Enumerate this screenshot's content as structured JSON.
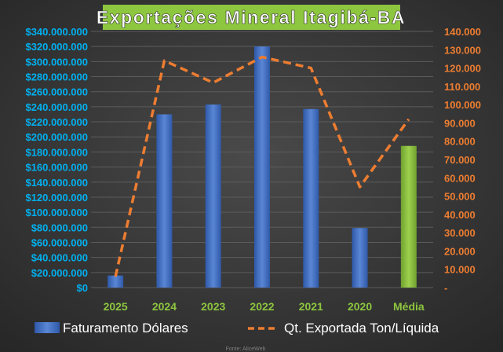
{
  "chart_data": {
    "type": "bar",
    "title": "Exportações Mineral Itagibá-BA",
    "categories": [
      "2025",
      "2024",
      "2023",
      "2022",
      "2021",
      "2020",
      "Média"
    ],
    "left_axis": {
      "ylim": [
        0,
        340000000
      ],
      "ticks": [
        "$0",
        "$20.000.000",
        "$40.000.000",
        "$60.000.000",
        "$80.000.000",
        "$100.000.000",
        "$120.000.000",
        "$140.000.000",
        "$160.000.000",
        "$180.000.000",
        "$200.000.000",
        "$220.000.000",
        "$240.000.000",
        "$260.000.000",
        "$280.000.000",
        "$300.000.000",
        "$320.000.000",
        "$340.000.000"
      ]
    },
    "right_axis": {
      "ylim": [
        0,
        140000
      ],
      "ticks": [
        "-",
        "10.000",
        "20.000",
        "30.000",
        "40.000",
        "50.000",
        "60.000",
        "70.000",
        "80.000",
        "90.000",
        "100.000",
        "110.000",
        "120.000",
        "130.000",
        "140.000"
      ]
    },
    "series": [
      {
        "name": "Faturamento Dólares",
        "kind": "bar",
        "axis": "left",
        "values": [
          16000000,
          230000000,
          243000000,
          320000000,
          237000000,
          79000000,
          188000000
        ],
        "color": "#4472c4",
        "highlight_color": "#8dc63f"
      },
      {
        "name": "Qt. Exportada Ton/Líquida",
        "kind": "line",
        "axis": "right",
        "style": "dashed",
        "values": [
          6000,
          124000,
          112000,
          126000,
          120000,
          55000,
          92000
        ],
        "color": "#ed7d31"
      }
    ],
    "grid": true,
    "legend_position": "bottom",
    "colors": {
      "plot_background": "#3a3a3a",
      "title_background": "#8dc63f",
      "left_axis_text": "#00b0f0",
      "right_axis_text": "#ed7d31",
      "category_text": "#8dc63f"
    }
  },
  "footer": {
    "source_label": "Fonte: AliceWeb"
  }
}
